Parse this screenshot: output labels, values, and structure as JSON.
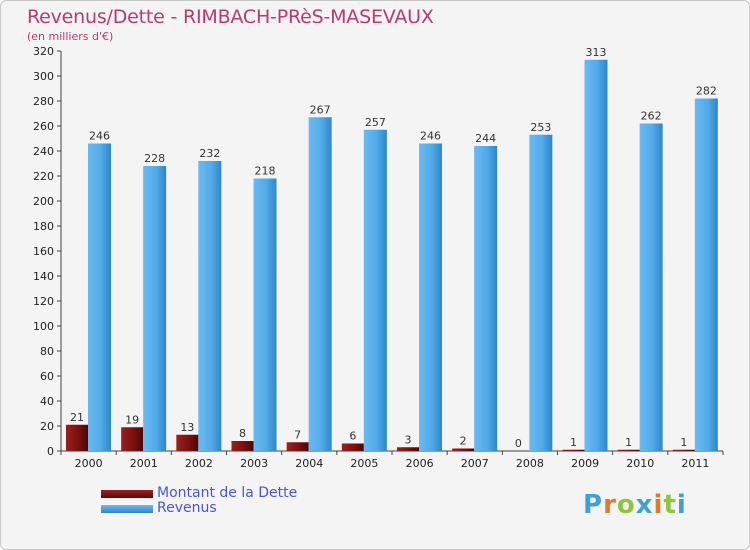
{
  "header": {
    "title": "Revenus/Dette - RIMBACH-PRèS-MASEVAUX",
    "subtitle": "(en milliers d'€)"
  },
  "colors": {
    "revenus": "#4da8e8",
    "dette": "#7a1010"
  },
  "chart_data": {
    "type": "bar",
    "categories": [
      "2000",
      "2001",
      "2002",
      "2003",
      "2004",
      "2005",
      "2006",
      "2007",
      "2008",
      "2009",
      "2010",
      "2011"
    ],
    "series": [
      {
        "name": "Montant de la Dette",
        "values": [
          21,
          19,
          13,
          8,
          7,
          6,
          3,
          2,
          0,
          1,
          1,
          1
        ]
      },
      {
        "name": "Revenus",
        "values": [
          246,
          228,
          232,
          218,
          267,
          257,
          246,
          244,
          253,
          313,
          262,
          282
        ]
      }
    ],
    "ylim": [
      0,
      320
    ],
    "ytick_step": 20,
    "grid": false,
    "legend_position": "bottom-left"
  },
  "logo": {
    "letters": [
      "P",
      "r",
      "o",
      "x",
      "i",
      "t",
      "i"
    ],
    "colors": [
      "#3da0d8",
      "#e07a2a",
      "#8cc63f",
      "#3da0d8",
      "#e07a2a",
      "#8cc63f",
      "#3da0d8"
    ]
  }
}
